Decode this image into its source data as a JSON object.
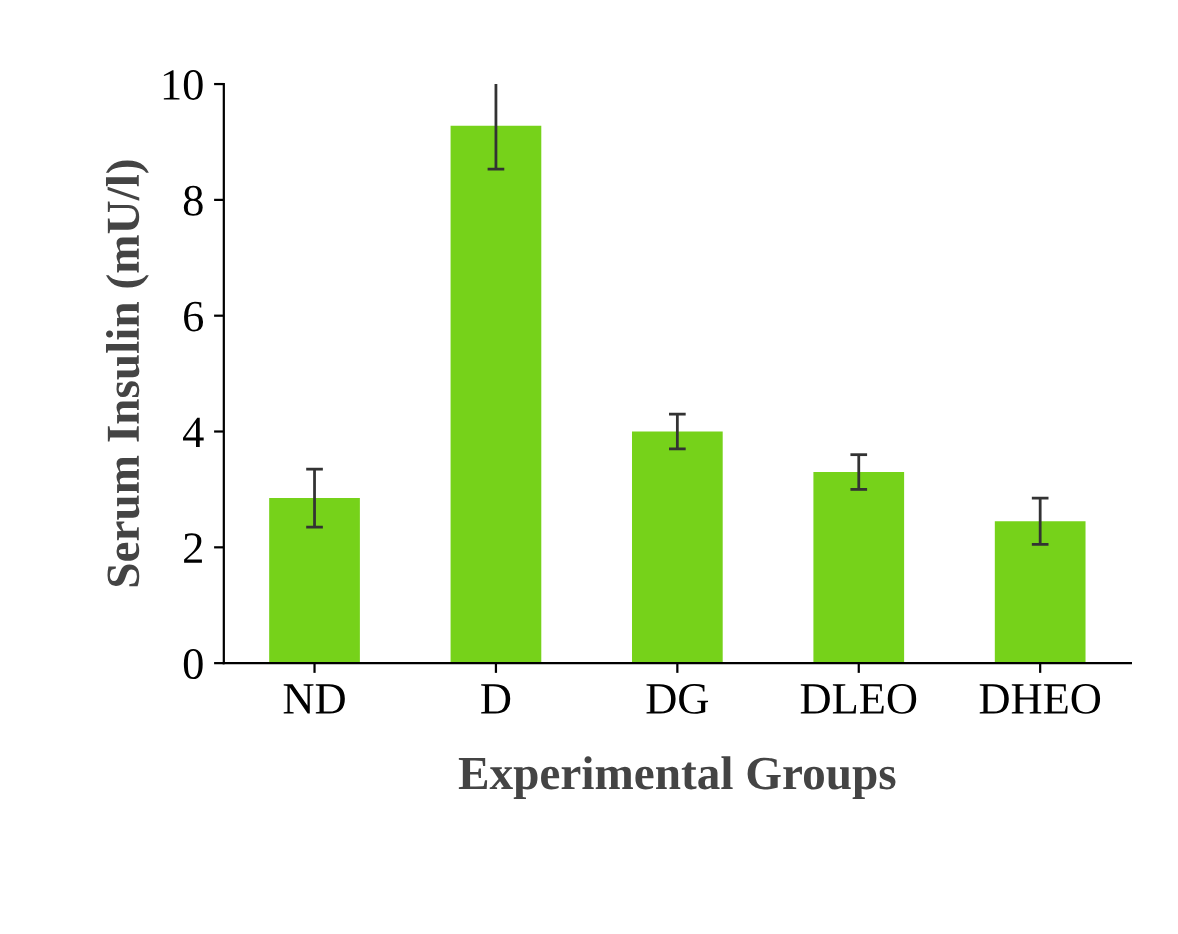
{
  "chart_data": {
    "type": "bar",
    "xlabel": "Experimental Groups",
    "ylabel": "Serum Insulin (mU/l)",
    "categories": [
      "ND",
      "D",
      "DG",
      "DLEO",
      "DHEO"
    ],
    "values": [
      2.85,
      9.28,
      4.0,
      3.3,
      2.45
    ],
    "errors": [
      0.5,
      0.75,
      0.3,
      0.3,
      0.4
    ],
    "color": "#76d21a",
    "ylim": [
      0,
      10
    ],
    "yticks": [
      0,
      2,
      4,
      6,
      8,
      10
    ],
    "grid": false
  }
}
